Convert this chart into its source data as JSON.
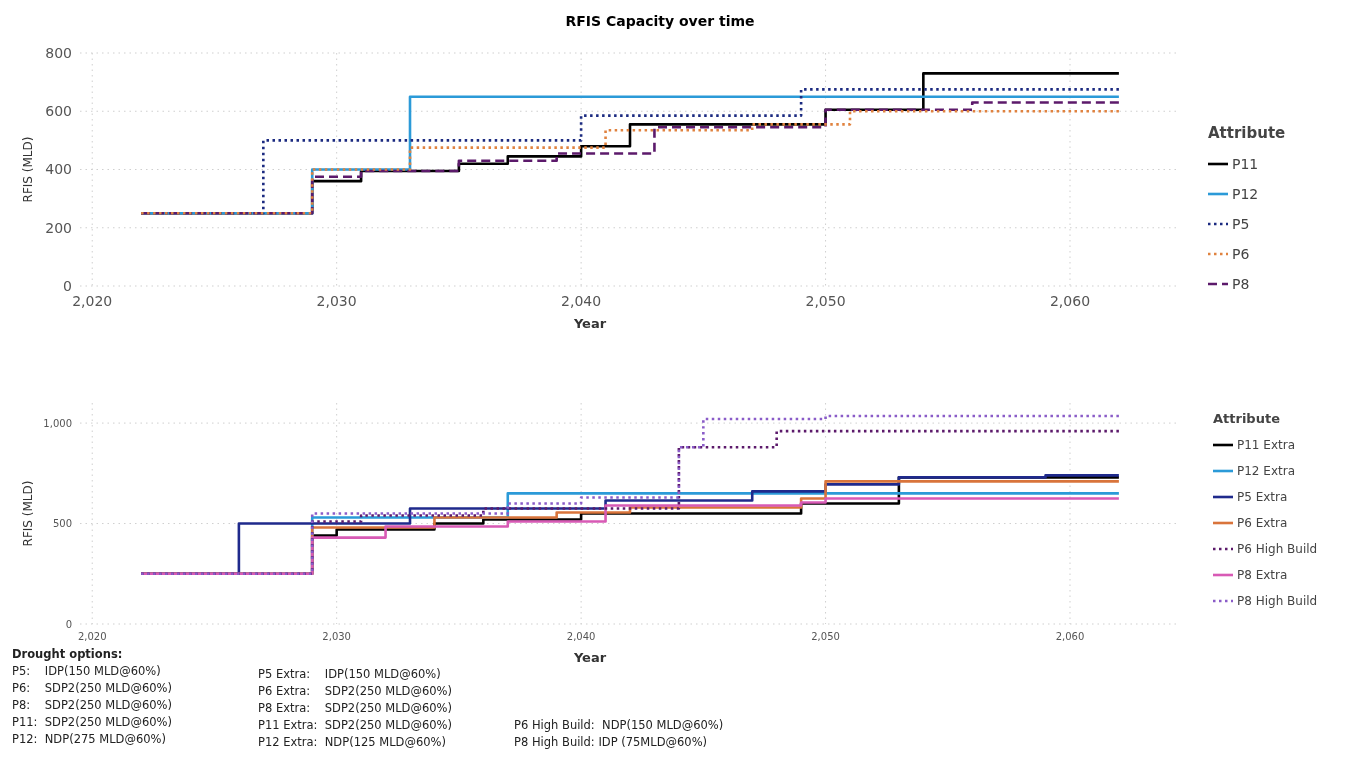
{
  "chart_data": [
    {
      "type": "step",
      "title": "RFIS Capacity over time",
      "xlabel": "Year",
      "ylabel": "RFIS (MLD)",
      "legend_title": "Attribute",
      "legend": "right",
      "grid": true,
      "xlim": [
        2019.5,
        2064.5
      ],
      "xticks": [
        {
          "value": 2020,
          "label": "2,020"
        },
        {
          "value": 2030,
          "label": "2,030"
        },
        {
          "value": 2040,
          "label": "2,040"
        },
        {
          "value": 2050,
          "label": "2,050"
        },
        {
          "value": 2060,
          "label": "2,060"
        }
      ],
      "ylim": [
        0,
        800
      ],
      "yticks": [
        0,
        200,
        400,
        600,
        800
      ],
      "series": [
        {
          "name": "P11",
          "color": "#000000",
          "line_style": "solid",
          "x": [
            2022,
            2029,
            2031,
            2035,
            2037,
            2040,
            2042,
            2050,
            2054,
            2062
          ],
          "values": [
            250,
            360,
            395,
            420,
            445,
            480,
            555,
            605,
            730,
            730
          ]
        },
        {
          "name": "P12",
          "color": "#2b9ad8",
          "line_style": "solid",
          "x": [
            2022,
            2029,
            2033,
            2062
          ],
          "values": [
            250,
            400,
            650,
            650
          ]
        },
        {
          "name": "P5",
          "color": "#1b2a80",
          "line_style": "dotted",
          "x": [
            2022,
            2027,
            2040,
            2049,
            2062
          ],
          "values": [
            250,
            500,
            585,
            675,
            675
          ]
        },
        {
          "name": "P6",
          "color": "#e0823f",
          "line_style": "dotted",
          "x": [
            2022,
            2029,
            2033,
            2041,
            2047,
            2051,
            2062
          ],
          "values": [
            250,
            400,
            475,
            535,
            555,
            600,
            600
          ]
        },
        {
          "name": "P8",
          "color": "#5c1a6b",
          "line_style": "dashed",
          "x": [
            2022,
            2029,
            2031,
            2035,
            2039,
            2043,
            2050,
            2056,
            2062
          ],
          "values": [
            250,
            375,
            395,
            430,
            455,
            545,
            605,
            630,
            630
          ]
        }
      ]
    },
    {
      "type": "step",
      "xlabel": "Year",
      "ylabel": "RFIS (MLD)",
      "legend_title": "Attribute",
      "legend": "right",
      "grid": true,
      "xlim": [
        2019.5,
        2064.5
      ],
      "xticks": [
        {
          "value": 2020,
          "label": "2,020"
        },
        {
          "value": 2030,
          "label": "2,030"
        },
        {
          "value": 2040,
          "label": "2,040"
        },
        {
          "value": 2050,
          "label": "2,050"
        },
        {
          "value": 2060,
          "label": "2,060"
        }
      ],
      "ylim": [
        0,
        1100
      ],
      "yticks": [
        0,
        500,
        {
          "value": 1000,
          "label": "1,000"
        }
      ],
      "series": [
        {
          "name": "P11 Extra",
          "color": "#000000",
          "line_style": "solid",
          "x": [
            2022,
            2029,
            2030,
            2034,
            2036,
            2040,
            2049,
            2053,
            2062
          ],
          "values": [
            250,
            440,
            470,
            500,
            520,
            550,
            600,
            730,
            730
          ]
        },
        {
          "name": "P12 Extra",
          "color": "#2b9ad8",
          "line_style": "solid",
          "x": [
            2022,
            2029,
            2037,
            2062
          ],
          "values": [
            250,
            530,
            650,
            650
          ]
        },
        {
          "name": "P5 Extra",
          "color": "#1f2a8c",
          "line_style": "solid",
          "x": [
            2022,
            2026,
            2033,
            2041,
            2047,
            2050,
            2053,
            2059,
            2062
          ],
          "values": [
            250,
            500,
            575,
            615,
            660,
            695,
            730,
            740,
            740
          ]
        },
        {
          "name": "P6 Extra",
          "color": "#d9743b",
          "line_style": "solid",
          "x": [
            2022,
            2029,
            2034,
            2039,
            2042,
            2049,
            2050,
            2062
          ],
          "values": [
            250,
            480,
            530,
            555,
            580,
            625,
            710,
            710
          ]
        },
        {
          "name": "P6 High Build",
          "color": "#5c1a6b",
          "line_style": "dotted",
          "x": [
            2022,
            2029,
            2031,
            2036,
            2044,
            2048,
            2062
          ],
          "values": [
            250,
            510,
            540,
            575,
            880,
            960,
            960
          ]
        },
        {
          "name": "P8 Extra",
          "color": "#d85ab5",
          "line_style": "solid",
          "x": [
            2022,
            2029,
            2032,
            2037,
            2041,
            2049,
            2050,
            2062
          ],
          "values": [
            250,
            430,
            485,
            510,
            590,
            605,
            625,
            625
          ]
        },
        {
          "name": "P8 High Build",
          "color": "#8a5cc8",
          "line_style": "dotted",
          "x": [
            2022,
            2029,
            2037,
            2040,
            2044,
            2045,
            2050,
            2062
          ],
          "values": [
            250,
            550,
            600,
            630,
            880,
            1020,
            1035,
            1035
          ]
        }
      ],
      "annotations": [
        "Drought options:",
        "P5:    IDP(150 MLD@60%)",
        "P6:    SDP2(250 MLD@60%)",
        "P8:    SDP2(250 MLD@60%)",
        "P11:  SDP2(250 MLD@60%)",
        "P12:  NDP(275 MLD@60%)",
        "P5 Extra:    IDP(150 MLD@60%)",
        "P6 Extra:    SDP2(250 MLD@60%)",
        "P8 Extra:    SDP2(250 MLD@60%)",
        "P11 Extra:  SDP2(250 MLD@60%)",
        "P12 Extra:  NDP(125 MLD@60%)",
        "P6 High Build:  NDP(150 MLD@60%)",
        "P8 High Build: IDP (75MLD@60%)"
      ]
    }
  ]
}
